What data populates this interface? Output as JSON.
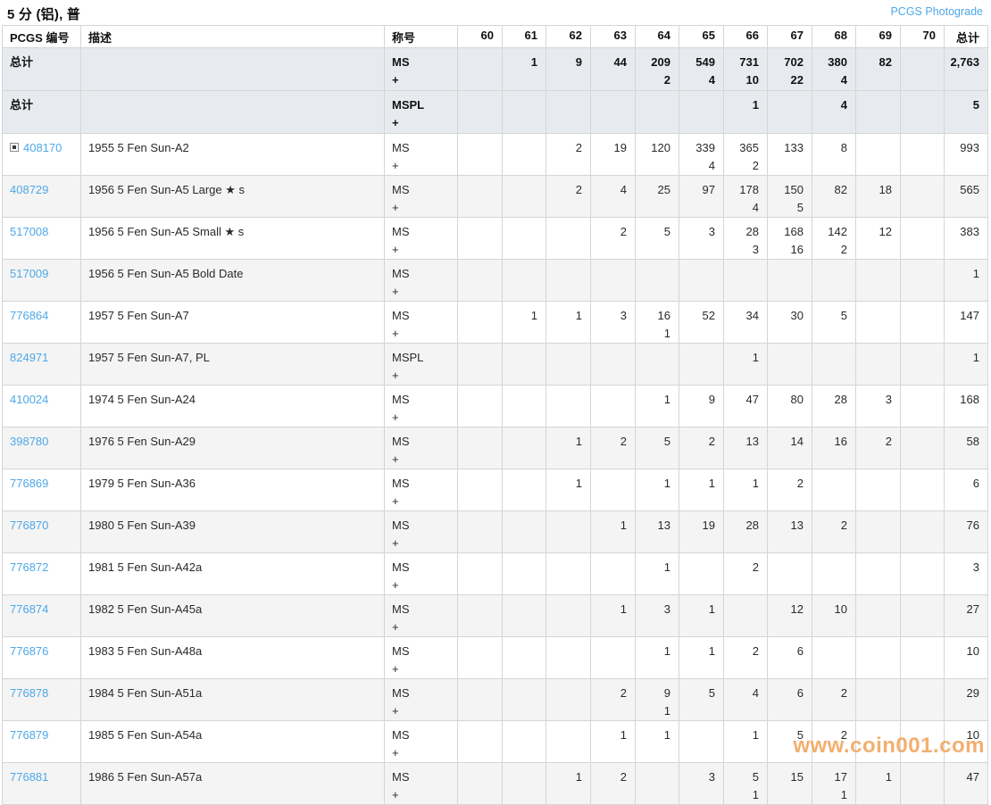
{
  "page": {
    "title": "5 分 (铝), 普",
    "photograde_link": "PCGS Photograde",
    "watermark": "www.coin001.com"
  },
  "colors": {
    "link_blue": "#4fa8e8",
    "totals_row_bg": "#e7ebef",
    "alt_row_bg": "#f4f4f4",
    "watermark_orange": "#f2a45c"
  },
  "table": {
    "headers": {
      "pcgs": "PCGS 编号",
      "desc": "描述",
      "designation": "称号",
      "total": "总计"
    },
    "grades": [
      "60",
      "61",
      "62",
      "63",
      "64",
      "65",
      "66",
      "67",
      "68",
      "69",
      "70"
    ],
    "totals_rows": [
      {
        "label": "总计",
        "desc": "",
        "designation": [
          "MS",
          "+"
        ],
        "grades": {
          "61": [
            "1"
          ],
          "62": [
            "9"
          ],
          "63": [
            "44"
          ],
          "64": [
            "209",
            "2"
          ],
          "65": [
            "549",
            "4"
          ],
          "66": [
            "731",
            "10"
          ],
          "67": [
            "702",
            "22"
          ],
          "68": [
            "380",
            "4"
          ],
          "69": [
            "82"
          ]
        },
        "total": "2,763"
      },
      {
        "label": "总计",
        "desc": "",
        "designation": [
          "MSPL",
          "+"
        ],
        "grades": {
          "66": [
            "1"
          ],
          "68": [
            "4"
          ]
        },
        "total": "5"
      }
    ],
    "rows": [
      {
        "pcgs": "408170",
        "has_expander": true,
        "desc": "1955 5 Fen Sun-A2",
        "designation": [
          "MS",
          "+"
        ],
        "grades": {
          "62": [
            "2"
          ],
          "63": [
            "19"
          ],
          "64": [
            "120"
          ],
          "65": [
            "339",
            "4"
          ],
          "66": [
            "365",
            "2"
          ],
          "67": [
            "133"
          ],
          "68": [
            "8"
          ]
        },
        "total": "993"
      },
      {
        "pcgs": "408729",
        "has_expander": false,
        "desc": "1956 5 Fen Sun-A5 Large ★ s",
        "designation": [
          "MS",
          "+"
        ],
        "grades": {
          "62": [
            "2"
          ],
          "63": [
            "4"
          ],
          "64": [
            "25"
          ],
          "65": [
            "97"
          ],
          "66": [
            "178",
            "4"
          ],
          "67": [
            "150",
            "5"
          ],
          "68": [
            "82"
          ],
          "69": [
            "18"
          ]
        },
        "total": "565"
      },
      {
        "pcgs": "517008",
        "has_expander": false,
        "desc": "1956 5 Fen Sun-A5 Small ★ s",
        "designation": [
          "MS",
          "+"
        ],
        "grades": {
          "63": [
            "2"
          ],
          "64": [
            "5"
          ],
          "65": [
            "3"
          ],
          "66": [
            "28",
            "3"
          ],
          "67": [
            "168",
            "16"
          ],
          "68": [
            "142",
            "2"
          ],
          "69": [
            "12"
          ]
        },
        "total": "383"
      },
      {
        "pcgs": "517009",
        "has_expander": false,
        "desc": "1956 5 Fen Sun-A5 Bold Date",
        "designation": [
          "MS",
          "+"
        ],
        "grades": {},
        "total": "1"
      },
      {
        "pcgs": "776864",
        "has_expander": false,
        "desc": "1957 5 Fen Sun-A7",
        "designation": [
          "MS",
          "+"
        ],
        "grades": {
          "61": [
            "1"
          ],
          "62": [
            "1"
          ],
          "63": [
            "3"
          ],
          "64": [
            "16",
            "1"
          ],
          "65": [
            "52"
          ],
          "66": [
            "34"
          ],
          "67": [
            "30"
          ],
          "68": [
            "5"
          ]
        },
        "total": "147"
      },
      {
        "pcgs": "824971",
        "has_expander": false,
        "desc": "1957 5 Fen Sun-A7, PL",
        "designation": [
          "MSPL",
          "+"
        ],
        "grades": {
          "66": [
            "1"
          ]
        },
        "total": "1"
      },
      {
        "pcgs": "410024",
        "has_expander": false,
        "desc": "1974 5 Fen Sun-A24",
        "designation": [
          "MS",
          "+"
        ],
        "grades": {
          "64": [
            "1"
          ],
          "65": [
            "9"
          ],
          "66": [
            "47"
          ],
          "67": [
            "80"
          ],
          "68": [
            "28"
          ],
          "69": [
            "3"
          ]
        },
        "total": "168"
      },
      {
        "pcgs": "398780",
        "has_expander": false,
        "desc": "1976 5 Fen Sun-A29",
        "designation": [
          "MS",
          "+"
        ],
        "grades": {
          "62": [
            "1"
          ],
          "63": [
            "2"
          ],
          "64": [
            "5"
          ],
          "65": [
            "2"
          ],
          "66": [
            "13"
          ],
          "67": [
            "14"
          ],
          "68": [
            "16"
          ],
          "69": [
            "2"
          ]
        },
        "total": "58"
      },
      {
        "pcgs": "776869",
        "has_expander": false,
        "desc": "1979 5 Fen Sun-A36",
        "designation": [
          "MS",
          "+"
        ],
        "grades": {
          "62": [
            "1"
          ],
          "64": [
            "1"
          ],
          "65": [
            "1"
          ],
          "66": [
            "1"
          ],
          "67": [
            "2"
          ]
        },
        "total": "6"
      },
      {
        "pcgs": "776870",
        "has_expander": false,
        "desc": "1980 5 Fen Sun-A39",
        "designation": [
          "MS",
          "+"
        ],
        "grades": {
          "63": [
            "1"
          ],
          "64": [
            "13"
          ],
          "65": [
            "19"
          ],
          "66": [
            "28"
          ],
          "67": [
            "13"
          ],
          "68": [
            "2"
          ]
        },
        "total": "76"
      },
      {
        "pcgs": "776872",
        "has_expander": false,
        "desc": "1981 5 Fen Sun-A42a",
        "designation": [
          "MS",
          "+"
        ],
        "grades": {
          "64": [
            "1"
          ],
          "66": [
            "2"
          ]
        },
        "total": "3"
      },
      {
        "pcgs": "776874",
        "has_expander": false,
        "desc": "1982 5 Fen Sun-A45a",
        "designation": [
          "MS",
          "+"
        ],
        "grades": {
          "63": [
            "1"
          ],
          "64": [
            "3"
          ],
          "65": [
            "1"
          ],
          "67": [
            "12"
          ],
          "68": [
            "10"
          ]
        },
        "total": "27"
      },
      {
        "pcgs": "776876",
        "has_expander": false,
        "desc": "1983 5 Fen Sun-A48a",
        "designation": [
          "MS",
          "+"
        ],
        "grades": {
          "64": [
            "1"
          ],
          "65": [
            "1"
          ],
          "66": [
            "2"
          ],
          "67": [
            "6"
          ]
        },
        "total": "10"
      },
      {
        "pcgs": "776878",
        "has_expander": false,
        "desc": "1984 5 Fen Sun-A51a",
        "designation": [
          "MS",
          "+"
        ],
        "grades": {
          "63": [
            "2"
          ],
          "64": [
            "9",
            "1"
          ],
          "65": [
            "5"
          ],
          "66": [
            "4"
          ],
          "67": [
            "6"
          ],
          "68": [
            "2"
          ]
        },
        "total": "29"
      },
      {
        "pcgs": "776879",
        "has_expander": false,
        "desc": "1985 5 Fen Sun-A54a",
        "designation": [
          "MS",
          "+"
        ],
        "grades": {
          "63": [
            "1"
          ],
          "64": [
            "1"
          ],
          "66": [
            "1"
          ],
          "67": [
            "5"
          ],
          "68": [
            "2"
          ]
        },
        "total": "10"
      },
      {
        "pcgs": "776881",
        "has_expander": false,
        "desc": "1986 5 Fen Sun-A57a",
        "designation": [
          "MS",
          "+"
        ],
        "grades": {
          "62": [
            "1"
          ],
          "63": [
            "2"
          ],
          "65": [
            "3"
          ],
          "66": [
            "5",
            "1"
          ],
          "67": [
            "15"
          ],
          "68": [
            "17",
            "1"
          ],
          "69": [
            "1"
          ]
        },
        "total": "47"
      }
    ]
  }
}
